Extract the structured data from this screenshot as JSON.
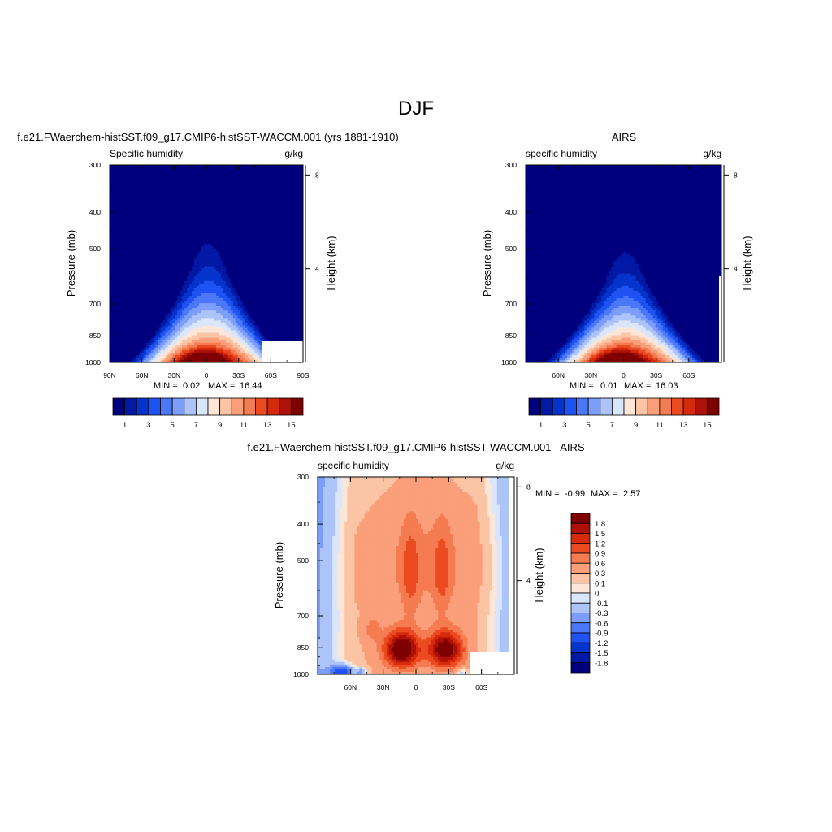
{
  "page": {
    "main_title": "DJF"
  },
  "chart_data": [
    {
      "type": "contour",
      "title": "f.e21.FWaerchem-histSST.f09_g17.CMIP6-histSST-WACCM.001 (yrs 1881-1910)",
      "left_label": "Specific humidity",
      "units_label": "g/kg",
      "ylabel": "Pressure (mb)",
      "ylabel_right": "Height (km)",
      "x_ticks": [
        "90N",
        "60N",
        "30N",
        "0",
        "30S",
        "60S",
        "90S"
      ],
      "x_tick_lats": [
        90,
        60,
        30,
        0,
        -30,
        -60,
        -90
      ],
      "y_ticks": [
        "300",
        "400",
        "500",
        "700",
        "850",
        "1000"
      ],
      "y_tick_values": [
        300,
        400,
        500,
        700,
        850,
        1000
      ],
      "height_ticks": [
        "8",
        "4"
      ],
      "height_tick_values": [
        8,
        4
      ],
      "xlim": [
        90,
        -90
      ],
      "ylim": [
        1000,
        300
      ],
      "min_label": "MIN =",
      "min_value": "0.02",
      "max_label": "MAX =",
      "max_value": "16.44",
      "levels": [
        1,
        2,
        3,
        4,
        5,
        6,
        7,
        8,
        9,
        10,
        11,
        12,
        13,
        14,
        15
      ],
      "colorbar_labels": [
        "1",
        "3",
        "5",
        "7",
        "9",
        "11",
        "13",
        "15"
      ],
      "colors": [
        "#00007f",
        "#0219a5",
        "#0434cb",
        "#1f52f2",
        "#4b78f9",
        "#7c9ef9",
        "#adc4f9",
        "#dae6fb",
        "#fbe6d7",
        "#fbc5a5",
        "#fa9f7a",
        "#f57b51",
        "#ec4b22",
        "#d52a0c",
        "#ad1107",
        "#7f0000"
      ],
      "peak_value": 16.4,
      "peak_lat": 3,
      "peak_pressure": 1000,
      "moisture_top_pressure": 410,
      "moisture_top_lat": -2
    },
    {
      "type": "contour",
      "title": "AIRS",
      "left_label": "specific humidity",
      "units_label": "g/kg",
      "ylabel": "Pressure (mb)",
      "ylabel_right": "Height (km)",
      "x_ticks": [
        "60N",
        "30N",
        "0",
        "30S",
        "60S"
      ],
      "x_tick_lats": [
        60,
        30,
        0,
        -30,
        -60
      ],
      "y_ticks": [
        "300",
        "400",
        "500",
        "700",
        "850",
        "1000"
      ],
      "y_tick_values": [
        300,
        400,
        500,
        700,
        850,
        1000
      ],
      "height_ticks": [
        "8",
        "4"
      ],
      "height_tick_values": [
        8,
        4
      ],
      "xlim": [
        90,
        -90
      ],
      "ylim": [
        1000,
        300
      ],
      "min_label": "MIN =",
      "min_value": "0.01",
      "max_label": "MAX =",
      "max_value": "16.03",
      "levels": [
        1,
        2,
        3,
        4,
        5,
        6,
        7,
        8,
        9,
        10,
        11,
        12,
        13,
        14,
        15
      ],
      "colorbar_labels": [
        "1",
        "3",
        "5",
        "7",
        "9",
        "11",
        "13",
        "15"
      ],
      "colors": [
        "#00007f",
        "#0219a5",
        "#0434cb",
        "#1f52f2",
        "#4b78f9",
        "#7c9ef9",
        "#adc4f9",
        "#dae6fb",
        "#fbe6d7",
        "#fbc5a5",
        "#fa9f7a",
        "#f57b51",
        "#ec4b22",
        "#d52a0c",
        "#ad1107",
        "#7f0000"
      ],
      "peak_value": 16.0,
      "peak_lat": 5,
      "peak_pressure": 1000,
      "moisture_top_pressure": 440,
      "moisture_top_lat": -2
    },
    {
      "type": "contour",
      "title": "f.e21.FWaerchem-histSST.f09_g17.CMIP6-histSST-WACCM.001 - AIRS",
      "left_label": "specific humidity",
      "units_label": "g/kg",
      "ylabel": "Pressure (mb)",
      "ylabel_right": "Height (km)",
      "x_ticks": [
        "60N",
        "30N",
        "0",
        "30S",
        "60S"
      ],
      "x_tick_lats": [
        60,
        30,
        0,
        -30,
        -60
      ],
      "y_ticks": [
        "300",
        "400",
        "500",
        "700",
        "850",
        "1000"
      ],
      "y_tick_values": [
        300,
        400,
        500,
        700,
        850,
        1000
      ],
      "height_ticks": [
        "8",
        "4"
      ],
      "height_tick_values": [
        8,
        4
      ],
      "xlim": [
        90,
        -90
      ],
      "ylim": [
        1000,
        300
      ],
      "min_label": "MIN =",
      "min_value": "-0.99",
      "max_label": "MAX =",
      "max_value": "2.57",
      "levels": [
        -1.8,
        -1.5,
        -1.2,
        -0.9,
        -0.6,
        -0.3,
        -0.1,
        0,
        0.1,
        0.3,
        0.6,
        0.9,
        1.2,
        1.5,
        1.8
      ],
      "colorbar_labels": [
        "1.8",
        "1.5",
        "1.2",
        "0.9",
        "0.6",
        "0.3",
        "0.1",
        "0",
        "-0.1",
        "-0.3",
        "-0.6",
        "-0.9",
        "-1.2",
        "-1.5",
        "-1.8"
      ],
      "colors": [
        "#00007f",
        "#0219a5",
        "#0434cb",
        "#1f52f2",
        "#4b78f9",
        "#7c9ef9",
        "#adc4f9",
        "#dae6fb",
        "#fbe6d7",
        "#fbc5a5",
        "#fa9f7a",
        "#f57b51",
        "#ec4b22",
        "#d52a0c",
        "#ad1107",
        "#7f0000"
      ],
      "maxima": [
        {
          "lat": 13,
          "pressure": 860,
          "value": 2.57
        },
        {
          "lat": -27,
          "pressure": 860,
          "value": 2.4
        }
      ],
      "minimum": {
        "lat": 68,
        "pressure": 985,
        "value": -0.99
      }
    }
  ]
}
